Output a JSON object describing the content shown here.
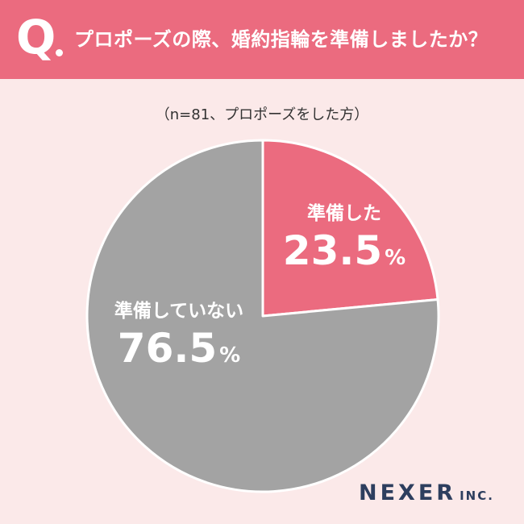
{
  "header": {
    "q_label": "Q",
    "question": "プロポーズの際、婚約指輪を準備しましたか？"
  },
  "subtitle": "（n=81、プロポーズをした方）",
  "colors": {
    "header_bg": "#eb6b7f",
    "background": "#fbe9e9",
    "slice_prepared": "#eb6b7f",
    "slice_not_prepared": "#a3a3a3",
    "logo": "#2d3e5e"
  },
  "chart_data": {
    "type": "pie",
    "slices": [
      {
        "label": "準備した",
        "value": 23.5,
        "display": "23.5",
        "unit": "%",
        "color": "#eb6b7f"
      },
      {
        "label": "準備していない",
        "value": 76.5,
        "display": "76.5",
        "unit": "%",
        "color": "#a3a3a3"
      }
    ]
  },
  "logo": {
    "main": "NEXER",
    "sub": "INC."
  }
}
